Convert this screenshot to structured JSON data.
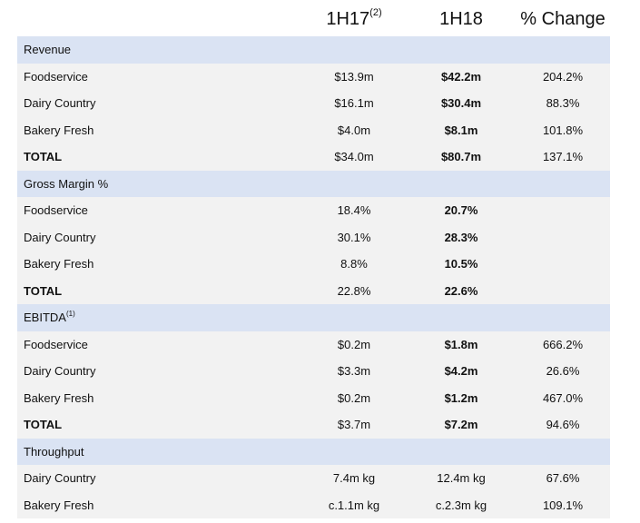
{
  "header": {
    "col1": "1H17",
    "col1_sup": "(2)",
    "col2": "1H18",
    "col3": "% Change"
  },
  "sections": [
    {
      "title": "Revenue",
      "title_sup": "",
      "rows": [
        {
          "label": "Foodservice",
          "v1": "$13.9m",
          "v2": "$42.2m",
          "v3": "204.2%"
        },
        {
          "label": "Dairy Country",
          "v1": "$16.1m",
          "v2": "$30.4m",
          "v3": "88.3%"
        },
        {
          "label": "Bakery Fresh",
          "v1": "$4.0m",
          "v2": "$8.1m",
          "v3": "101.8%"
        },
        {
          "label": "TOTAL",
          "v1": "$34.0m",
          "v2": "$80.7m",
          "v3": "137.1%",
          "total": true
        }
      ]
    },
    {
      "title": "Gross Margin %",
      "title_sup": "",
      "rows": [
        {
          "label": "Foodservice",
          "v1": "18.4%",
          "v2": "20.7%",
          "v3": ""
        },
        {
          "label": "Dairy Country",
          "v1": "30.1%",
          "v2": "28.3%",
          "v3": ""
        },
        {
          "label": "Bakery Fresh",
          "v1": "8.8%",
          "v2": "10.5%",
          "v3": ""
        },
        {
          "label": "TOTAL",
          "v1": "22.8%",
          "v2": "22.6%",
          "v3": "",
          "total": true
        }
      ]
    },
    {
      "title": "EBITDA",
      "title_sup": "(1)",
      "rows": [
        {
          "label": "Foodservice",
          "v1": "$0.2m",
          "v2": "$1.8m",
          "v3": "666.2%"
        },
        {
          "label": "Dairy Country",
          "v1": "$3.3m",
          "v2": "$4.2m",
          "v3": "26.6%"
        },
        {
          "label": "Bakery Fresh",
          "v1": "$0.2m",
          "v2": "$1.2m",
          "v3": "467.0%"
        },
        {
          "label": "TOTAL",
          "v1": "$3.7m",
          "v2": "$7.2m",
          "v3": "94.6%",
          "total": true
        }
      ]
    },
    {
      "title": "Throughput",
      "title_sup": "",
      "plain": true,
      "rows": [
        {
          "label": "Dairy Country",
          "v1": "7.4m kg",
          "v2": "12.4m kg",
          "v3": "67.6%"
        },
        {
          "label": "Bakery Fresh",
          "v1": "c.1.1m kg",
          "v2": "c.2.3m kg",
          "v3": "109.1%"
        }
      ]
    }
  ],
  "colors": {
    "section_bg": "#dae3f3",
    "row_bg": "#f2f2f2"
  }
}
